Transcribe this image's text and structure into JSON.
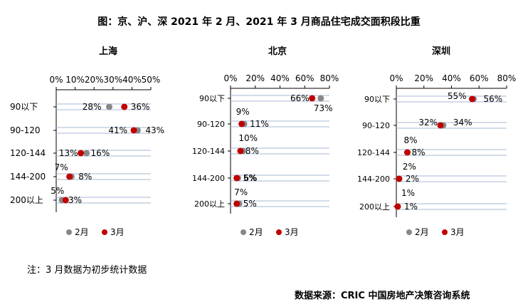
{
  "title": "图：京、沪、深 2021 年 2 月、2021 年 3 月商品住宅成交面积段比重",
  "note": "注：3 月数据为初步统计数据",
  "source": "数据来源：CRIC 中国房地产决策咨询系统",
  "colors": {
    "feb": "#888888",
    "mar": "#c00000",
    "grid": "#a5b8d3",
    "axis": "#000000"
  },
  "chart_data": [
    {
      "type": "scatter",
      "title": "上海",
      "categories": [
        "90以下",
        "90-120",
        "120-144",
        "144-200",
        "200以上"
      ],
      "xlim": [
        0,
        50
      ],
      "xticks": [
        "0%",
        "10%",
        "20%",
        "30%",
        "40%",
        "50%"
      ],
      "series": [
        {
          "name": "2月",
          "values": [
            28,
            43,
            16,
            8,
            3
          ],
          "labels": [
            "28%",
            "43%",
            "16%",
            "8%",
            "3%"
          ]
        },
        {
          "name": "3月",
          "values": [
            36,
            41,
            13,
            7,
            5
          ],
          "labels": [
            "36%",
            "41%",
            "13%",
            "7%",
            "5%"
          ]
        }
      ],
      "legend": "bottom"
    },
    {
      "type": "scatter",
      "title": "北京",
      "categories": [
        "90以下",
        "90-120",
        "120-144",
        "144-200",
        "200以上"
      ],
      "xlim": [
        0,
        80
      ],
      "xticks": [
        "0%",
        "20%",
        "40%",
        "60%",
        "80%"
      ],
      "series": [
        {
          "name": "2月",
          "values": [
            73,
            11,
            10,
            6,
            7
          ],
          "labels": [
            "73%",
            "11%",
            "10%",
            "6%",
            "7%"
          ]
        },
        {
          "name": "3月",
          "values": [
            66,
            9,
            8,
            5,
            5
          ],
          "labels": [
            "66%",
            "9%",
            "8%",
            "5%",
            "5%"
          ]
        }
      ],
      "legend": "bottom"
    },
    {
      "type": "scatter",
      "title": "深圳",
      "categories": [
        "90以下",
        "90-120",
        "120-144",
        "144-200",
        "200以上"
      ],
      "xlim": [
        0,
        80
      ],
      "xticks": [
        "0%",
        "20%",
        "40%",
        "60%",
        "80%"
      ],
      "series": [
        {
          "name": "2月",
          "values": [
            56,
            34,
            8,
            2,
            1
          ],
          "labels": [
            "56%",
            "34%",
            "8%",
            "2%",
            "1%"
          ]
        },
        {
          "name": "3月",
          "values": [
            55,
            32,
            8,
            2,
            1
          ],
          "labels": [
            "55%",
            "32%",
            "8%",
            "2%",
            "1%"
          ]
        }
      ],
      "legend": "bottom"
    }
  ]
}
